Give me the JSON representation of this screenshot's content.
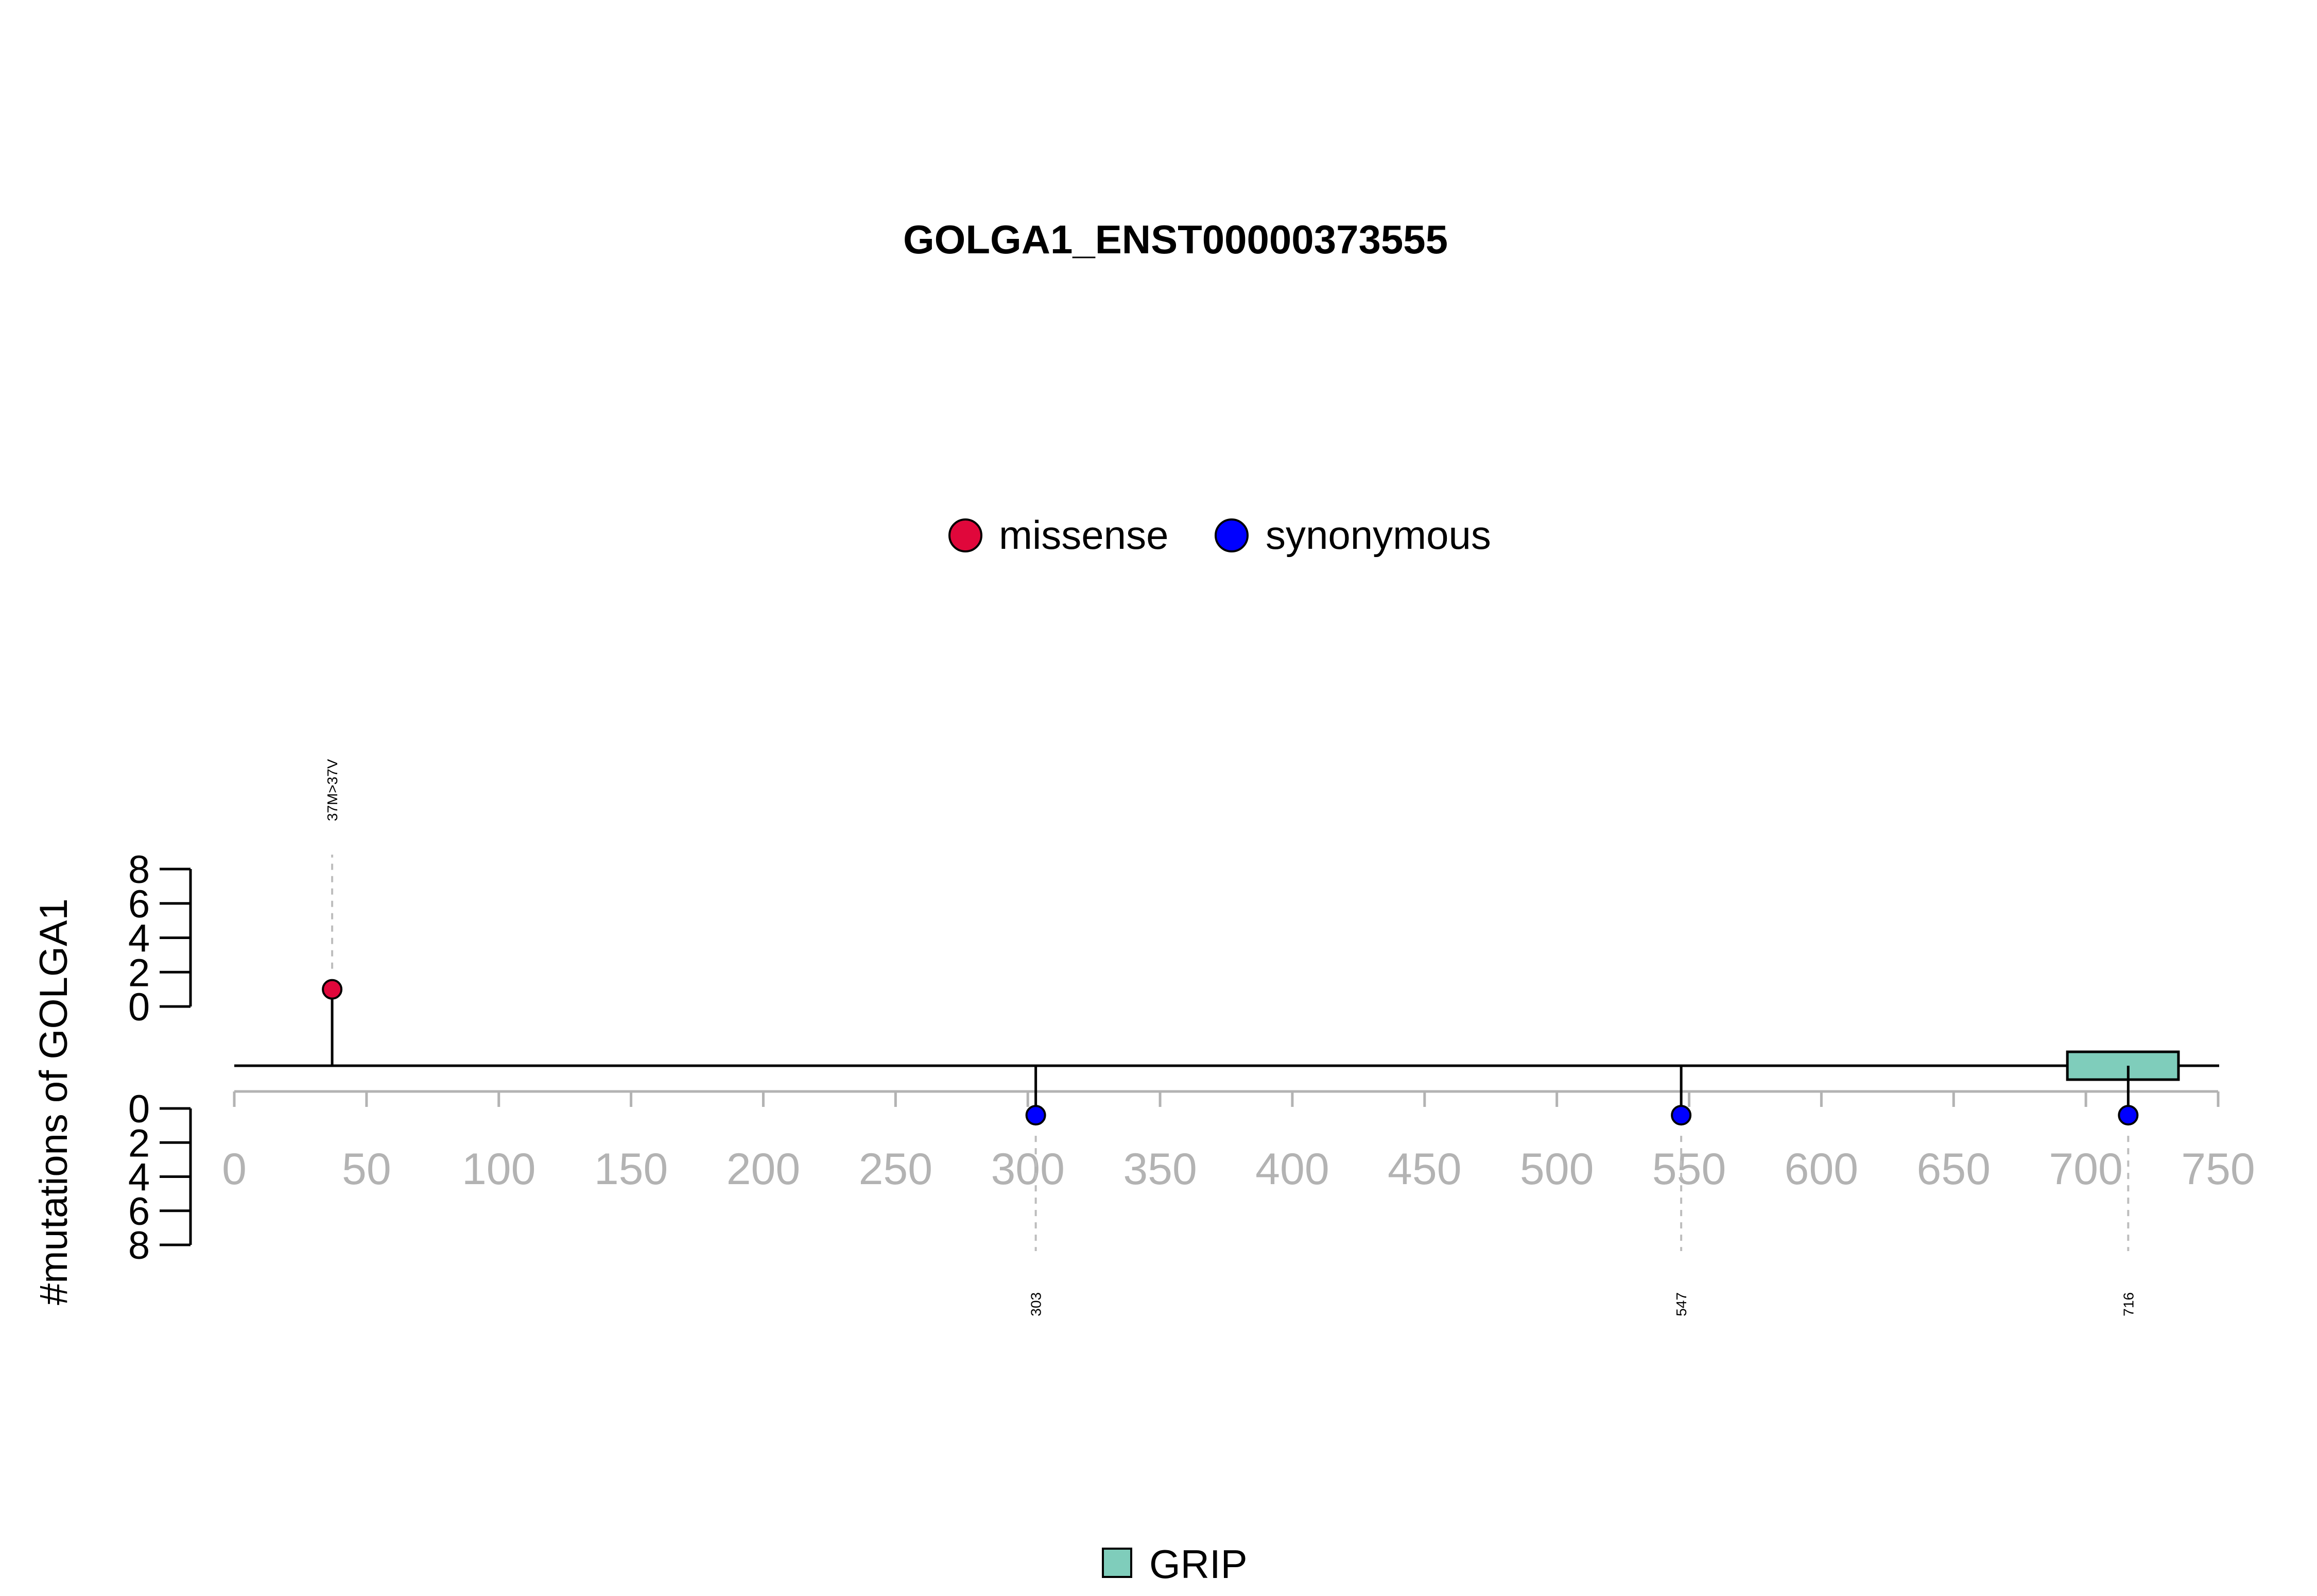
{
  "chart_data": {
    "type": "lollipop",
    "title": "GOLGA1_ENST00000373555",
    "ylabel": "#mutations of GOLGA1",
    "xlim": [
      0,
      750
    ],
    "x_ticks": [
      0,
      50,
      100,
      150,
      200,
      250,
      300,
      350,
      400,
      450,
      500,
      550,
      600,
      650,
      700,
      750
    ],
    "y_ticks": [
      0,
      2,
      4,
      6,
      8
    ],
    "ylim_top": [
      0,
      8
    ],
    "ylim_bottom": [
      0,
      8
    ],
    "legend": [
      {
        "name": "missense",
        "color": "#e0073b"
      },
      {
        "name": "synonymous",
        "color": "#0000ff"
      }
    ],
    "mutations": [
      {
        "position": 37,
        "label": "37M>37V",
        "count": 1,
        "type": "missense",
        "side": "top"
      },
      {
        "position": 303,
        "label": "303",
        "count": 1,
        "type": "synonymous",
        "side": "bottom"
      },
      {
        "position": 547,
        "label": "547",
        "count": 1,
        "type": "synonymous",
        "side": "bottom"
      },
      {
        "position": 716,
        "label": "716",
        "count": 1,
        "type": "synonymous",
        "side": "bottom"
      }
    ],
    "domains": [
      {
        "name": "GRIP",
        "start": 693,
        "end": 735,
        "color": "#7fcdbb"
      }
    ],
    "grid": false
  }
}
